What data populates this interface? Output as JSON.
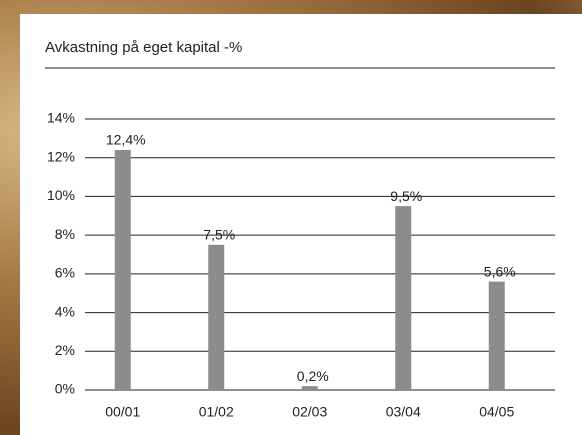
{
  "chart_data": {
    "type": "bar",
    "title": "Avkastning på eget kapital -%",
    "categories": [
      "00/01",
      "01/02",
      "02/03",
      "03/04",
      "04/05"
    ],
    "values": [
      12.4,
      7.5,
      0.2,
      9.5,
      5.6
    ],
    "value_labels": [
      "12,4%",
      "7,5%",
      "0,2%",
      "9,5%",
      "5,6%"
    ],
    "color": "#8c8c8c",
    "ylim": [
      0,
      14
    ],
    "yticks": [
      {
        "value": 0,
        "label": "0%"
      },
      {
        "value": 2,
        "label": "2%"
      },
      {
        "value": 4,
        "label": "4%"
      },
      {
        "value": 6,
        "label": "6%"
      },
      {
        "value": 8,
        "label": "8%"
      },
      {
        "value": 10,
        "label": "10%"
      },
      {
        "value": 12,
        "label": "12%"
      },
      {
        "value": 14,
        "label": "14%"
      }
    ],
    "grid": true
  }
}
